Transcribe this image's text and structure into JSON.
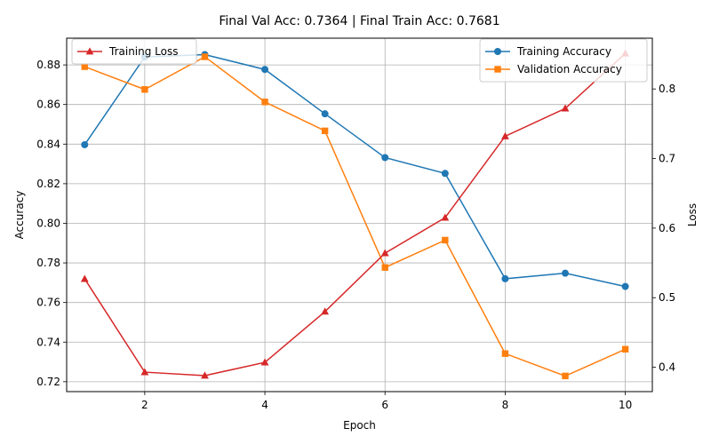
{
  "chart_data": {
    "type": "line",
    "title": "Final Val Acc: 0.7364 | Final Train Acc: 0.7681",
    "xlabel": "Epoch",
    "ylabel": "Accuracy",
    "ylabel_right": "Loss",
    "x": [
      1,
      2,
      3,
      4,
      5,
      6,
      7,
      8,
      9,
      10
    ],
    "xlim": [
      0.7,
      10.45
    ],
    "ylim": [
      0.715,
      0.8935
    ],
    "ylim_right": [
      0.365,
      0.873
    ],
    "x_ticks": [
      2,
      4,
      6,
      8,
      10
    ],
    "y_ticks": [
      "0.72",
      "0.74",
      "0.76",
      "0.78",
      "0.80",
      "0.82",
      "0.84",
      "0.86",
      "0.88"
    ],
    "y_ticks_right": [
      "0.4",
      "0.5",
      "0.6",
      "0.7",
      "0.8"
    ],
    "grid": true,
    "series": [
      {
        "name": "Training Accuracy",
        "axis": "left",
        "color": "#1f77b4",
        "marker": "circle",
        "values": [
          0.8397,
          0.884,
          0.8852,
          0.8777,
          0.8553,
          0.8332,
          0.8252,
          0.772,
          0.7748,
          0.7681
        ]
      },
      {
        "name": "Validation Accuracy",
        "axis": "left",
        "color": "#ff7f0e",
        "marker": "square",
        "values": [
          0.8791,
          0.8676,
          0.8841,
          0.8613,
          0.8467,
          0.7777,
          0.7915,
          0.7342,
          0.7229,
          0.7364
        ]
      },
      {
        "name": "Training Loss",
        "axis": "right",
        "color": "#d62728",
        "marker": "triangle",
        "values": [
          0.527,
          0.393,
          0.388,
          0.407,
          0.48,
          0.564,
          0.615,
          0.732,
          0.772,
          0.851
        ]
      }
    ],
    "legend_left_placement": "upper-left",
    "legend_right_placement": "upper-right"
  }
}
